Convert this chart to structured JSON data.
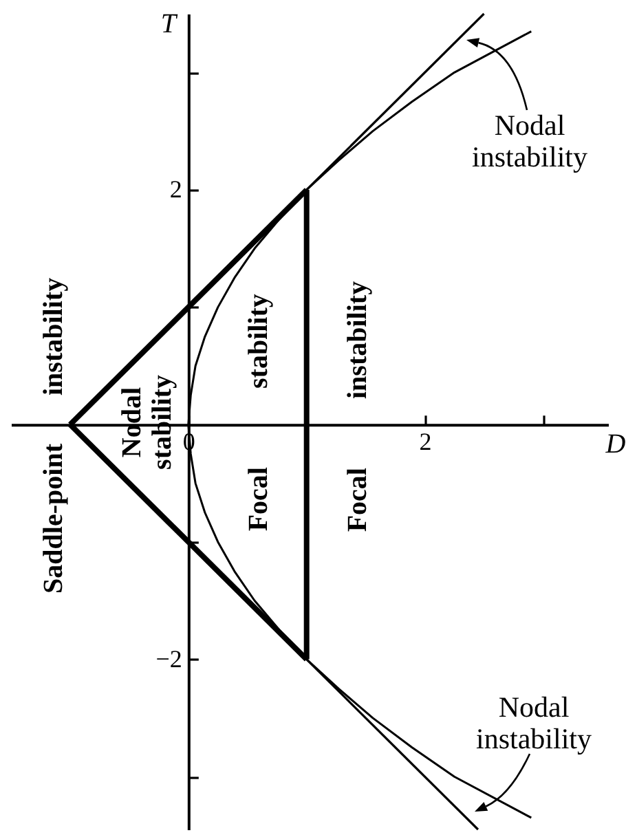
{
  "chart_data": {
    "type": "line",
    "xlabel": "D",
    "ylabel": "T",
    "xlim": [
      -1.5,
      3.55
    ],
    "ylim": [
      -3.45,
      3.5
    ],
    "xticks": [
      0,
      2,
      {
        "value": 3,
        "label": null
      }
    ],
    "yticks": [
      {
        "value": -3,
        "label": null
      },
      -2,
      {
        "value": -1,
        "label": null
      },
      {
        "value": 1,
        "label": null
      },
      2,
      {
        "value": 3,
        "label": null
      }
    ],
    "series": [
      {
        "color": "#000000",
        "x": [
          -1,
          1
        ],
        "values": [
          0,
          2
        ]
      },
      {
        "color": "#000000",
        "x": [
          -1,
          1
        ],
        "values": [
          0,
          -2
        ]
      },
      {
        "color": "#000000",
        "x": [
          1,
          1
        ],
        "values": [
          -2,
          2
        ]
      },
      {
        "color": "#000000",
        "x": [
          1,
          2.5
        ],
        "values": [
          2,
          3.5
        ]
      },
      {
        "color": "#000000",
        "x": [
          1,
          2.45
        ],
        "values": [
          -2,
          -3.45
        ]
      },
      {
        "color": "#000000",
        "x": [
          2.9,
          2.25,
          1.89,
          1.56,
          1.27,
          1,
          0.77,
          0.56,
          0.39,
          0.25,
          0.14,
          0.06,
          0.02,
          0,
          0.02,
          0.06,
          0.14,
          0.25,
          0.39,
          0.56,
          0.77,
          1,
          1.27,
          1.56,
          1.89,
          2.25,
          2.9
        ],
        "values": [
          -3.35,
          -3,
          -2.75,
          -2.5,
          -2.25,
          -2,
          -1.75,
          -1.5,
          -1.25,
          -1,
          -0.75,
          -0.5,
          -0.25,
          0,
          0.25,
          0.5,
          0.75,
          1,
          1.25,
          1.5,
          1.75,
          2,
          2.25,
          2.5,
          2.75,
          3,
          3.35
        ]
      }
    ],
    "annotations": [
      "Saddle-point instability",
      "Nodal stability",
      "Focal stability",
      "Focal instability",
      "Nodal instability",
      "Nodal instability"
    ]
  }
}
